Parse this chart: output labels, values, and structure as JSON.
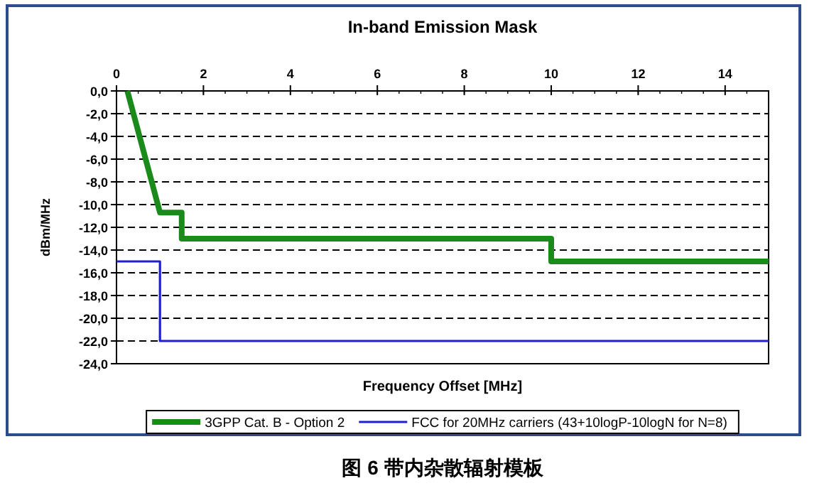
{
  "chart_data": {
    "type": "line",
    "title": "In-band Emission Mask",
    "xlabel": "Frequency Offset [MHz]",
    "ylabel": "dBm/MHz",
    "xlim": [
      0,
      15
    ],
    "xticks": [
      0,
      2,
      4,
      6,
      8,
      10,
      12,
      14
    ],
    "ylim": [
      -24,
      0
    ],
    "yticks": [
      {
        "value": 0,
        "label": "0,0"
      },
      {
        "value": -2,
        "label": "-2,0"
      },
      {
        "value": -4,
        "label": "-4,0"
      },
      {
        "value": -6,
        "label": "-6,0"
      },
      {
        "value": -8,
        "label": "-8,0"
      },
      {
        "value": -10,
        "label": "-10,0"
      },
      {
        "value": -12,
        "label": "-12,0"
      },
      {
        "value": -14,
        "label": "-14,0"
      },
      {
        "value": -16,
        "label": "-16,0"
      },
      {
        "value": -18,
        "label": "-18,0"
      },
      {
        "value": -20,
        "label": "-20,0"
      },
      {
        "value": -22,
        "label": "-22,0"
      },
      {
        "value": -24,
        "label": "-24,0"
      }
    ],
    "grid": "y",
    "legend": "bottom",
    "line_style": "solid",
    "marker": "none",
    "series": [
      {
        "name": "3GPP Cat. B - Option 2",
        "color": "#1a8a1a",
        "x": [
          0.25,
          1.0,
          1.5,
          1.5,
          10,
          10,
          15
        ],
        "values": [
          0,
          -10.7,
          -10.7,
          -13,
          -13,
          -15,
          -15
        ]
      },
      {
        "name": "FCC for 20MHz carriers (43+10logP-10logN for N=8)",
        "color": "#1f1fd0",
        "x": [
          0,
          1.0,
          1.0,
          15
        ],
        "values": [
          -15,
          -15,
          -22,
          -22
        ]
      }
    ],
    "annotations": [
      "图 6 带内杂散辐射模板"
    ]
  }
}
